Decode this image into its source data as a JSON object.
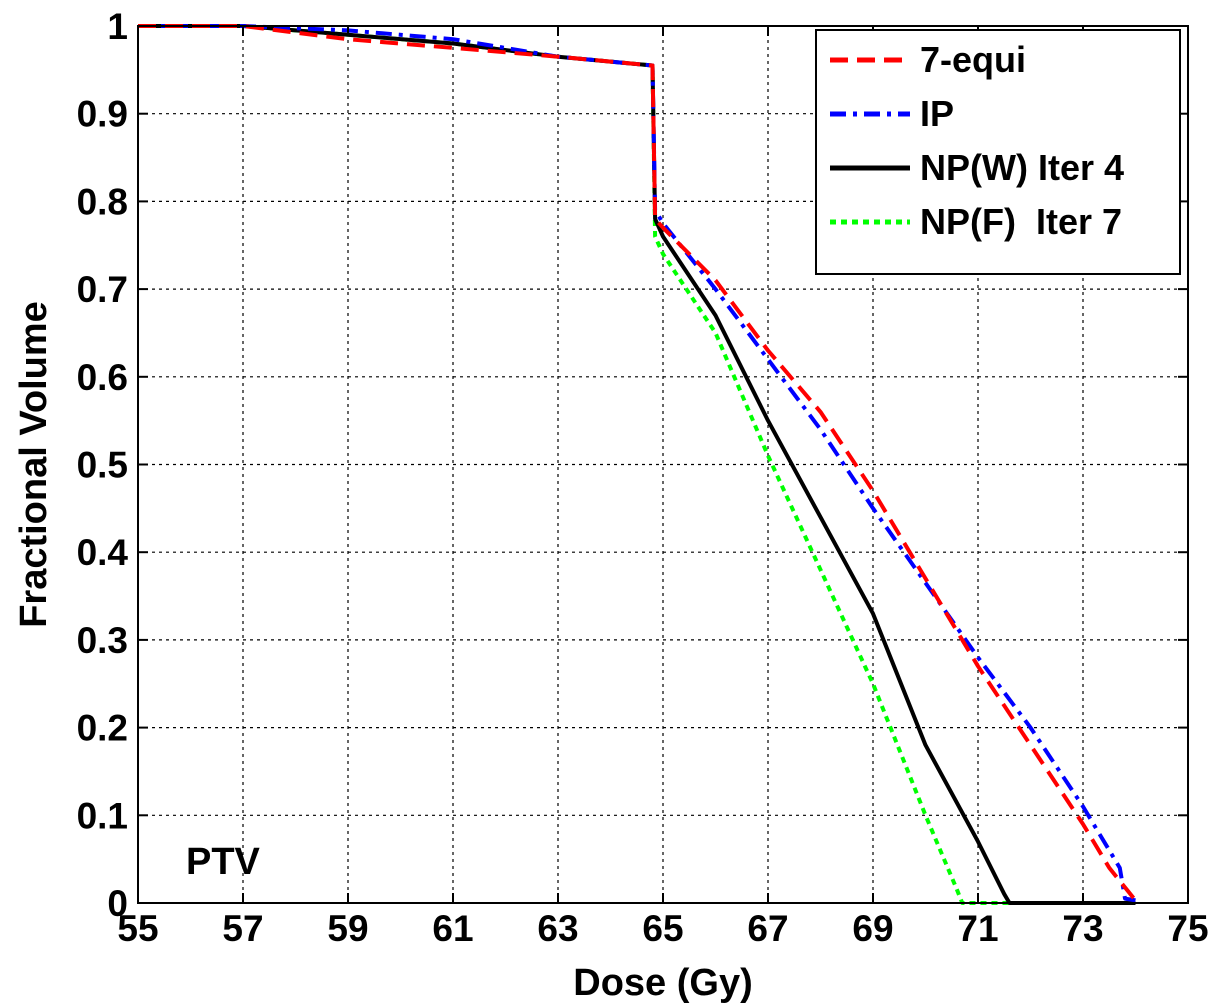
{
  "chart_data": {
    "type": "line",
    "title": "",
    "xlabel": "Dose (Gy)",
    "ylabel": "Fractional Volume",
    "xlim": [
      55,
      75
    ],
    "ylim": [
      0,
      1
    ],
    "x_ticks": [
      55,
      57,
      59,
      61,
      63,
      65,
      67,
      69,
      71,
      73,
      75
    ],
    "y_ticks": [
      0,
      0.1,
      0.2,
      0.3,
      0.4,
      0.5,
      0.6,
      0.7,
      0.8,
      0.9,
      1
    ],
    "y_tick_labels": [
      "0",
      "0.1",
      "0.2",
      "0.3",
      "0.4",
      "0.5",
      "0.6",
      "0.7",
      "0.8",
      "0.9",
      "1"
    ],
    "grid": true,
    "legend_position": "top-right",
    "annotation": "PTV",
    "series": [
      {
        "name": "7-equi",
        "color": "#ff0000",
        "style": "dashed",
        "points": [
          [
            55,
            1
          ],
          [
            57,
            1
          ],
          [
            59,
            0.985
          ],
          [
            61,
            0.975
          ],
          [
            63,
            0.965
          ],
          [
            64.8,
            0.955
          ],
          [
            64.85,
            0.78
          ],
          [
            65,
            0.77
          ],
          [
            66,
            0.71
          ],
          [
            67,
            0.63
          ],
          [
            68,
            0.56
          ],
          [
            69,
            0.47
          ],
          [
            70,
            0.37
          ],
          [
            71,
            0.27
          ],
          [
            72,
            0.18
          ],
          [
            73,
            0.09
          ],
          [
            73.5,
            0.04
          ],
          [
            74,
            0.003
          ],
          [
            74.05,
            0
          ]
        ]
      },
      {
        "name": "IP",
        "color": "#0000ff",
        "style": "dashdot",
        "points": [
          [
            55,
            1
          ],
          [
            57,
            1
          ],
          [
            59,
            0.995
          ],
          [
            61,
            0.985
          ],
          [
            63,
            0.965
          ],
          [
            64.8,
            0.955
          ],
          [
            64.85,
            0.79
          ],
          [
            65,
            0.775
          ],
          [
            66,
            0.7
          ],
          [
            67,
            0.62
          ],
          [
            68,
            0.54
          ],
          [
            69,
            0.45
          ],
          [
            70,
            0.365
          ],
          [
            71,
            0.28
          ],
          [
            72,
            0.2
          ],
          [
            73,
            0.11
          ],
          [
            73.7,
            0.04
          ],
          [
            73.8,
            0.005
          ],
          [
            74,
            0.003
          ]
        ]
      },
      {
        "name": "NP(W) Iter 4",
        "color": "#000000",
        "style": "solid",
        "points": [
          [
            55,
            1
          ],
          [
            57,
            1
          ],
          [
            59,
            0.99
          ],
          [
            61,
            0.98
          ],
          [
            63,
            0.965
          ],
          [
            64.8,
            0.955
          ],
          [
            64.85,
            0.78
          ],
          [
            65,
            0.76
          ],
          [
            66,
            0.67
          ],
          [
            67,
            0.55
          ],
          [
            68,
            0.44
          ],
          [
            69,
            0.33
          ],
          [
            70,
            0.18
          ],
          [
            71,
            0.07
          ],
          [
            71.5,
            0.01
          ],
          [
            71.6,
            0
          ],
          [
            74,
            0
          ]
        ]
      },
      {
        "name": "NP(F)  Iter 7",
        "color": "#00ff00",
        "style": "dotted",
        "points": [
          [
            55,
            1
          ],
          [
            57,
            1
          ],
          [
            59,
            0.99
          ],
          [
            61,
            0.98
          ],
          [
            63,
            0.965
          ],
          [
            64.8,
            0.955
          ],
          [
            64.85,
            0.76
          ],
          [
            65,
            0.74
          ],
          [
            66,
            0.65
          ],
          [
            67,
            0.51
          ],
          [
            68,
            0.38
          ],
          [
            69,
            0.25
          ],
          [
            70,
            0.1
          ],
          [
            70.6,
            0.015
          ],
          [
            70.7,
            0
          ],
          [
            74,
            0
          ]
        ]
      }
    ]
  }
}
